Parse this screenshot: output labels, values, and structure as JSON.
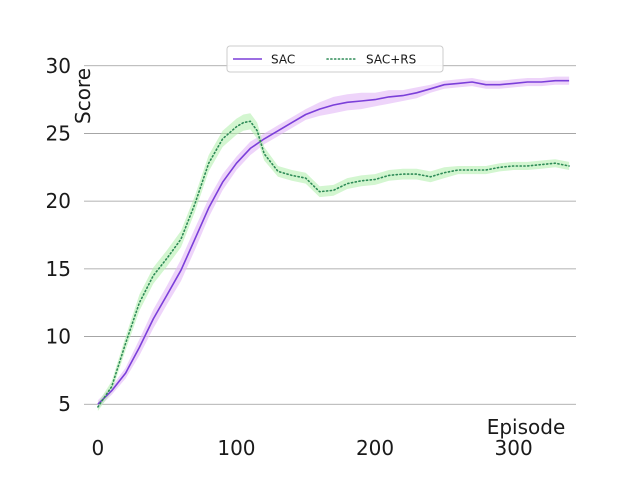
{
  "chart_data": {
    "type": "line",
    "xlabel": "Episode",
    "ylabel": "Score",
    "xlim": [
      -10,
      345
    ],
    "ylim": [
      4.5,
      30.5
    ],
    "xticks": [
      0,
      100,
      200,
      300
    ],
    "yticks": [
      5,
      10,
      15,
      20,
      25,
      30
    ],
    "grid": "horizontal",
    "legend": "top-center",
    "series": [
      {
        "name": "SAC",
        "color": "#7b3fd9",
        "band_color": "#e2b8f6",
        "style": "solid",
        "x": [
          0,
          10,
          20,
          30,
          40,
          50,
          60,
          70,
          80,
          90,
          100,
          110,
          120,
          130,
          140,
          150,
          160,
          170,
          180,
          190,
          200,
          210,
          220,
          230,
          240,
          250,
          260,
          270,
          280,
          290,
          300,
          310,
          320,
          330,
          340
        ],
        "y": [
          5.0,
          6.0,
          7.3,
          9.2,
          11.3,
          13.1,
          14.9,
          17.2,
          19.5,
          21.4,
          22.8,
          23.9,
          24.6,
          25.2,
          25.8,
          26.4,
          26.8,
          27.1,
          27.3,
          27.4,
          27.5,
          27.7,
          27.8,
          28.0,
          28.3,
          28.6,
          28.7,
          28.8,
          28.6,
          28.6,
          28.7,
          28.8,
          28.8,
          28.9,
          28.9
        ],
        "band": [
          0.3,
          0.3,
          0.4,
          0.6,
          0.7,
          0.7,
          0.8,
          0.8,
          0.7,
          0.6,
          0.5,
          0.5,
          0.4,
          0.4,
          0.4,
          0.4,
          0.5,
          0.6,
          0.6,
          0.6,
          0.5,
          0.5,
          0.4,
          0.4,
          0.3,
          0.3,
          0.3,
          0.3,
          0.3,
          0.3,
          0.3,
          0.3,
          0.3,
          0.3,
          0.3
        ]
      },
      {
        "name": "SAC+RS",
        "color": "#2e8b57",
        "band_color": "#b5f0b0",
        "style": "dotted",
        "x": [
          0,
          10,
          20,
          30,
          40,
          50,
          60,
          70,
          80,
          90,
          100,
          105,
          110,
          115,
          120,
          130,
          140,
          150,
          160,
          170,
          180,
          190,
          200,
          210,
          220,
          230,
          240,
          250,
          260,
          270,
          280,
          290,
          300,
          310,
          320,
          330,
          340
        ],
        "y": [
          4.8,
          6.3,
          9.5,
          12.5,
          14.5,
          15.8,
          17.2,
          19.8,
          22.8,
          24.6,
          25.5,
          25.8,
          25.9,
          25.2,
          23.5,
          22.2,
          21.9,
          21.7,
          20.7,
          20.8,
          21.3,
          21.5,
          21.6,
          21.9,
          22.0,
          22.0,
          21.8,
          22.1,
          22.3,
          22.3,
          22.3,
          22.5,
          22.6,
          22.6,
          22.7,
          22.8,
          22.6
        ],
        "band": [
          0.3,
          0.4,
          0.5,
          0.6,
          0.6,
          0.6,
          0.6,
          0.6,
          0.6,
          0.6,
          0.6,
          0.6,
          0.6,
          0.6,
          0.5,
          0.4,
          0.4,
          0.4,
          0.4,
          0.4,
          0.4,
          0.4,
          0.4,
          0.4,
          0.4,
          0.4,
          0.4,
          0.4,
          0.3,
          0.3,
          0.3,
          0.3,
          0.3,
          0.3,
          0.3,
          0.3,
          0.3
        ]
      }
    ]
  }
}
